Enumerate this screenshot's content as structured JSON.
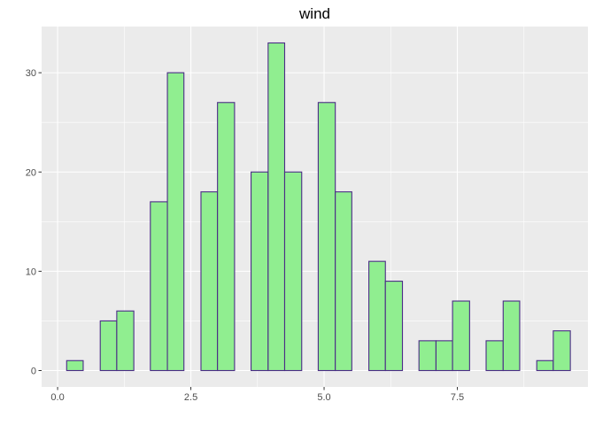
{
  "chart_data": {
    "type": "bar",
    "title": "wind",
    "xlabel": "",
    "ylabel": "",
    "bins": [
      {
        "x0": 0.17,
        "x1": 0.48,
        "count": 1
      },
      {
        "x0": 0.48,
        "x1": 0.8,
        "count": 0
      },
      {
        "x0": 0.8,
        "x1": 1.11,
        "count": 5
      },
      {
        "x0": 1.11,
        "x1": 1.43,
        "count": 6
      },
      {
        "x0": 1.43,
        "x1": 1.74,
        "count": 0
      },
      {
        "x0": 1.74,
        "x1": 2.06,
        "count": 17
      },
      {
        "x0": 2.06,
        "x1": 2.37,
        "count": 30
      },
      {
        "x0": 2.37,
        "x1": 2.69,
        "count": 0
      },
      {
        "x0": 2.69,
        "x1": 3.0,
        "count": 18
      },
      {
        "x0": 3.0,
        "x1": 3.32,
        "count": 27
      },
      {
        "x0": 3.32,
        "x1": 3.63,
        "count": 0
      },
      {
        "x0": 3.63,
        "x1": 3.95,
        "count": 20
      },
      {
        "x0": 3.95,
        "x1": 4.26,
        "count": 33
      },
      {
        "x0": 4.26,
        "x1": 4.58,
        "count": 20
      },
      {
        "x0": 4.58,
        "x1": 4.89,
        "count": 0
      },
      {
        "x0": 4.89,
        "x1": 5.21,
        "count": 27
      },
      {
        "x0": 5.21,
        "x1": 5.52,
        "count": 18
      },
      {
        "x0": 5.52,
        "x1": 5.84,
        "count": 0
      },
      {
        "x0": 5.84,
        "x1": 6.15,
        "count": 11
      },
      {
        "x0": 6.15,
        "x1": 6.47,
        "count": 9
      },
      {
        "x0": 6.47,
        "x1": 6.78,
        "count": 0
      },
      {
        "x0": 6.78,
        "x1": 7.1,
        "count": 3
      },
      {
        "x0": 7.1,
        "x1": 7.41,
        "count": 3
      },
      {
        "x0": 7.41,
        "x1": 7.73,
        "count": 7
      },
      {
        "x0": 7.73,
        "x1": 8.04,
        "count": 0
      },
      {
        "x0": 8.04,
        "x1": 8.36,
        "count": 3
      },
      {
        "x0": 8.36,
        "x1": 8.67,
        "count": 7
      },
      {
        "x0": 8.67,
        "x1": 8.99,
        "count": 0
      },
      {
        "x0": 8.99,
        "x1": 9.3,
        "count": 1
      },
      {
        "x0": 9.3,
        "x1": 9.62,
        "count": 4
      }
    ],
    "x_ticks": [
      0.0,
      2.5,
      5.0,
      7.5
    ],
    "x_tick_labels": [
      "0.0",
      "2.5",
      "5.0",
      "7.5"
    ],
    "y_ticks": [
      0,
      10,
      20,
      30
    ],
    "y_tick_labels": [
      "0",
      "10",
      "20",
      "30"
    ],
    "xlim": [
      -0.3,
      9.95
    ],
    "ylim": [
      -1.65,
      34.65
    ],
    "grid": true,
    "legend": "none",
    "colors": {
      "fill": "#90ee90",
      "outline": "#4b2c86",
      "panel": "#ebebeb",
      "grid": "#ffffff",
      "axis_text": "#4d4d4d"
    }
  }
}
